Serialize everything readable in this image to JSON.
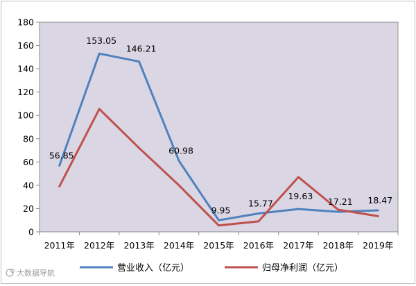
{
  "chart_data": {
    "type": "line",
    "categories": [
      "2011年",
      "2012年",
      "2013年",
      "2014年",
      "2015年",
      "2016年",
      "2017年",
      "2018年",
      "2019年"
    ],
    "series": [
      {
        "name": "营业收入（亿元）",
        "color": "#4f81bd",
        "values": [
          56.85,
          153.05,
          146.21,
          60.98,
          9.95,
          15.77,
          19.63,
          17.21,
          18.47
        ],
        "labels": [
          "56.85",
          "153.05",
          "146.21",
          "60.98",
          "9.95",
          "15.77",
          "19.63",
          "17.21",
          "18.47"
        ]
      },
      {
        "name": "归母净利润（亿元）",
        "color": "#c0504d",
        "values": [
          39,
          105.5,
          72,
          40,
          5.5,
          9,
          47,
          19,
          13.5
        ]
      }
    ],
    "ylim": [
      0,
      180
    ],
    "yticks": [
      0,
      20,
      40,
      60,
      80,
      100,
      120,
      140,
      160,
      180
    ],
    "plot_background": "#dad6e4",
    "grid": false,
    "legend_position": "bottom",
    "watermark": "大数据导航"
  }
}
